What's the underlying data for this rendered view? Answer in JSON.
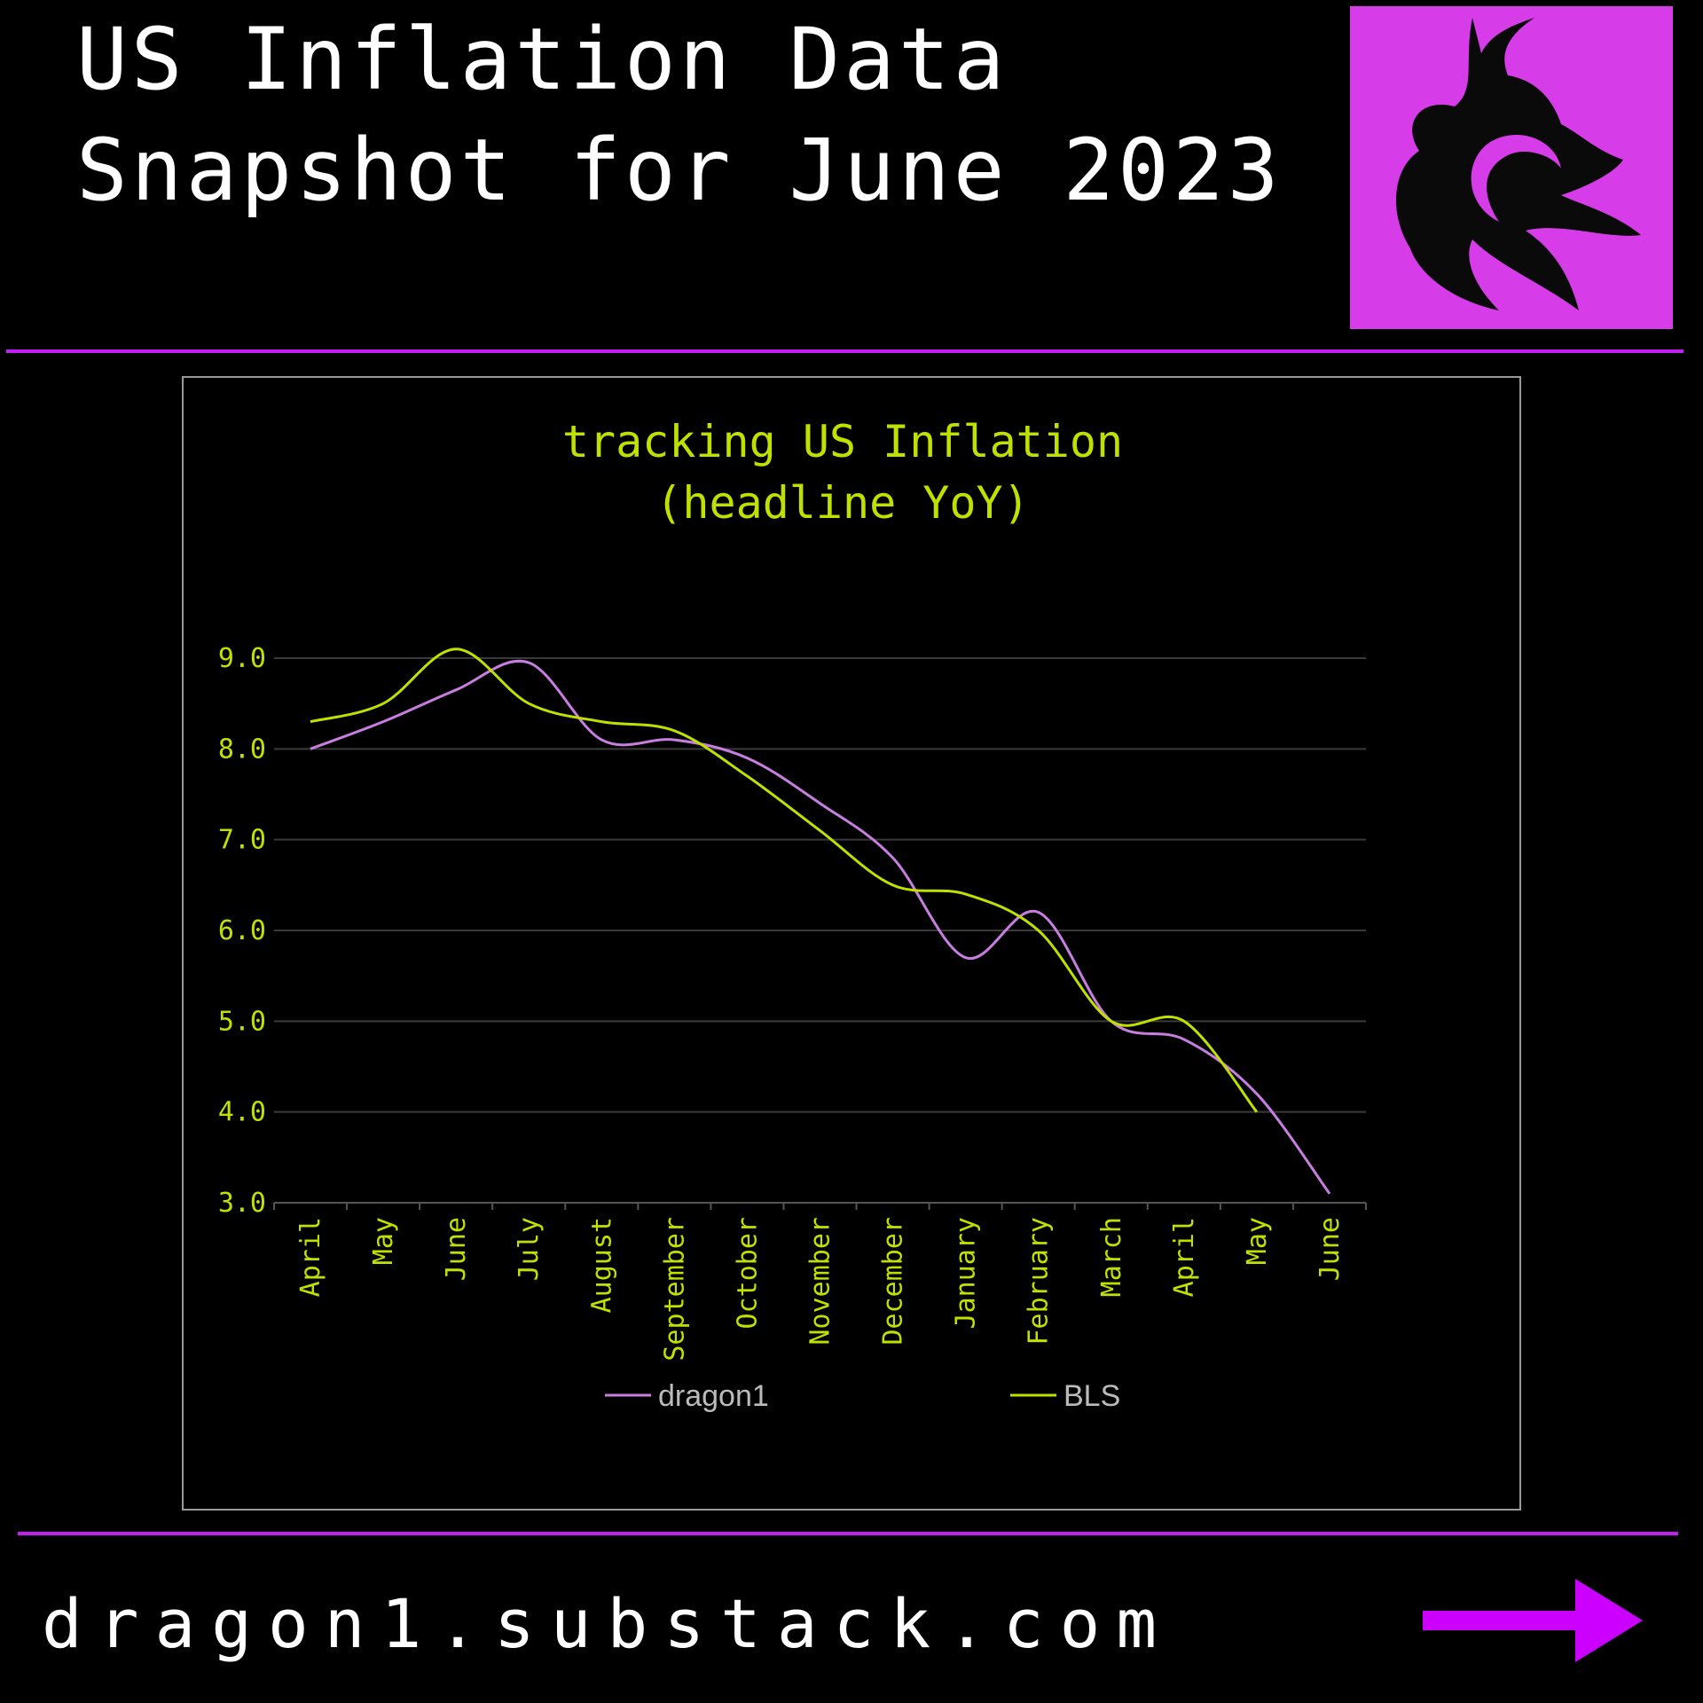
{
  "header": {
    "title_lines": [
      "US Inflation Data",
      "Snapshot for June 2023"
    ]
  },
  "chart_data": {
    "type": "line",
    "title": "tracking US Inflation",
    "subtitle": "(headline YoY)",
    "categories": [
      "April",
      "May",
      "June",
      "July",
      "August",
      "September",
      "October",
      "November",
      "December",
      "January",
      "February",
      "March",
      "April",
      "May",
      "June"
    ],
    "series": [
      {
        "name": "dragon1",
        "color": "#c77ee0",
        "values": [
          8.0,
          8.3,
          8.65,
          8.95,
          8.1,
          8.1,
          7.9,
          7.4,
          6.8,
          5.7,
          6.2,
          5.0,
          4.8,
          4.2,
          3.1
        ]
      },
      {
        "name": "BLS",
        "color": "#c0e000",
        "values": [
          8.3,
          8.5,
          9.1,
          8.5,
          8.3,
          8.2,
          7.7,
          7.1,
          6.5,
          6.4,
          6.0,
          5.0,
          5.0,
          4.0,
          null
        ]
      }
    ],
    "ylim": [
      3,
      9.4
    ],
    "yticks": [
      {
        "value": 3,
        "label": "3.0"
      },
      {
        "value": 4,
        "label": "4.0"
      },
      {
        "value": 5,
        "label": "5.0"
      },
      {
        "value": 6,
        "label": "6.0"
      },
      {
        "value": 7,
        "label": "7.0"
      },
      {
        "value": 8,
        "label": "8.0"
      },
      {
        "value": 9,
        "label": "9.0"
      }
    ],
    "grid": true,
    "legend": "bottom"
  },
  "footer": {
    "url": "dragon1.substack.com"
  }
}
